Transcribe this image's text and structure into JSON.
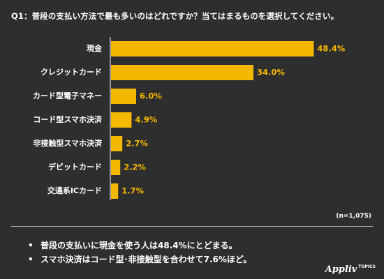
{
  "question": "Q1：普段の支払い方法で最も多いのはどれですか？当てはまるものを選択してください。",
  "chart_data": {
    "type": "bar",
    "orientation": "horizontal",
    "categories": [
      "現金",
      "クレジットカード",
      "カード型電子マネー",
      "コード型スマホ決済",
      "非接触型スマホ決済",
      "デビットカード",
      "交通系ICカード"
    ],
    "values": [
      48.4,
      34.0,
      6.0,
      4.9,
      2.7,
      2.2,
      1.7
    ],
    "value_labels": [
      "48.4%",
      "34.0%",
      "6.0%",
      "4.9%",
      "2.7%",
      "2.2%",
      "1.7%"
    ],
    "unit": "%",
    "bar_color": "#f3b800",
    "grid": false,
    "xlim": [
      0,
      50
    ]
  },
  "sample_note": "(n=1,075)",
  "summary": [
    "普段の支払いに現金を使う人は48.4%にとどまる。",
    "スマホ決済はコード型･非接触型を合わせて7.6%ほど。"
  ],
  "bullet": "•",
  "brand": {
    "name": "Appliv",
    "sub": "TOPICS"
  },
  "colors": {
    "background": "#2e2e2e",
    "bar": "#f3b800",
    "axis": "#ffffff",
    "text": "#ffffff"
  }
}
